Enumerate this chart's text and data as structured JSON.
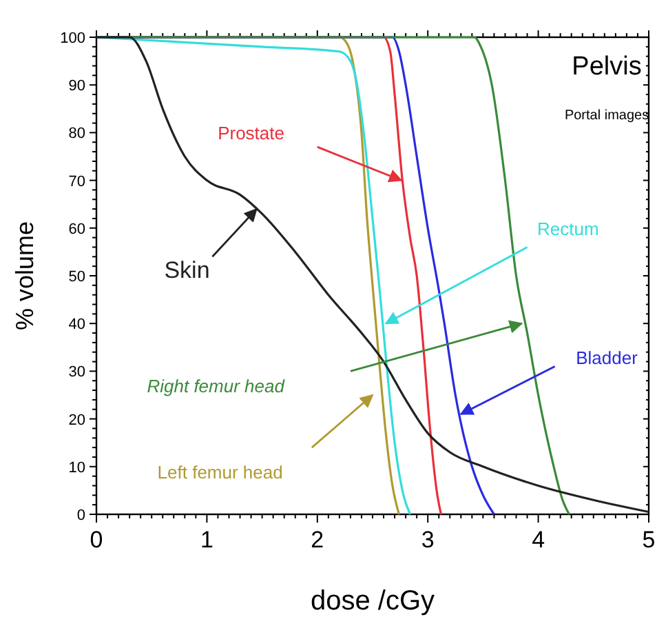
{
  "chart_data": {
    "type": "line",
    "title": "Pelvis",
    "subtitle": "Portal images",
    "xlabel": "dose /cGy",
    "ylabel": "% volume",
    "xlim": [
      0,
      5
    ],
    "ylim": [
      0,
      100
    ],
    "xticks": [
      0,
      1,
      2,
      3,
      4,
      5
    ],
    "yticks": [
      0,
      10,
      20,
      30,
      40,
      50,
      60,
      70,
      80,
      90,
      100
    ],
    "grid": false,
    "legend": false,
    "marker": "none",
    "line_style": "solid",
    "series": [
      {
        "name": "Left femur head",
        "color": "#b09a30",
        "x": [
          0,
          2.2,
          2.26,
          2.32,
          2.4,
          2.45,
          2.5,
          2.56,
          2.62,
          2.68,
          2.74
        ],
        "values": [
          100,
          100,
          99,
          95,
          80,
          62,
          48,
          32,
          17,
          6,
          0
        ]
      },
      {
        "name": "Rectum",
        "color": "#33dddd",
        "x": [
          0,
          1.5,
          2.2,
          2.3,
          2.36,
          2.42,
          2.5,
          2.56,
          2.62,
          2.7,
          2.78,
          2.84
        ],
        "values": [
          100,
          98,
          97,
          95,
          90,
          80,
          62,
          48,
          33,
          15,
          4,
          0
        ]
      },
      {
        "name": "Prostate",
        "color": "#e8303a",
        "x": [
          0,
          2.6,
          2.66,
          2.7,
          2.77,
          2.84,
          2.9,
          2.96,
          3.02,
          3.08,
          3.12
        ],
        "values": [
          100,
          100,
          97,
          88,
          70,
          58,
          50,
          35,
          18,
          5,
          0
        ]
      },
      {
        "name": "Bladder",
        "color": "#2a2ae0",
        "x": [
          0,
          2.68,
          2.74,
          2.8,
          2.9,
          3.0,
          3.1,
          3.15,
          3.25,
          3.4,
          3.5,
          3.6
        ],
        "values": [
          100,
          100,
          97,
          90,
          75,
          60,
          47,
          40,
          25,
          10,
          4,
          0
        ]
      },
      {
        "name": "Right femur head",
        "color": "#3a8a3a",
        "x": [
          0,
          3.42,
          3.48,
          3.58,
          3.7,
          3.8,
          3.9,
          4.0,
          4.14,
          4.22,
          4.28
        ],
        "values": [
          100,
          100,
          98,
          90,
          70,
          50,
          38,
          25,
          10,
          3,
          0
        ]
      },
      {
        "name": "Skin",
        "color": "#222222",
        "x": [
          0,
          0.3,
          0.45,
          0.6,
          0.8,
          1.0,
          1.3,
          1.5,
          1.8,
          2.1,
          2.4,
          2.6,
          2.8,
          3.0,
          3.2,
          3.5,
          4.0,
          4.5,
          5.0
        ],
        "values": [
          100,
          100,
          95,
          85,
          75,
          70,
          67,
          63,
          55,
          46,
          38,
          32,
          24,
          17,
          13,
          10,
          6,
          3,
          0.5
        ]
      }
    ]
  }
}
